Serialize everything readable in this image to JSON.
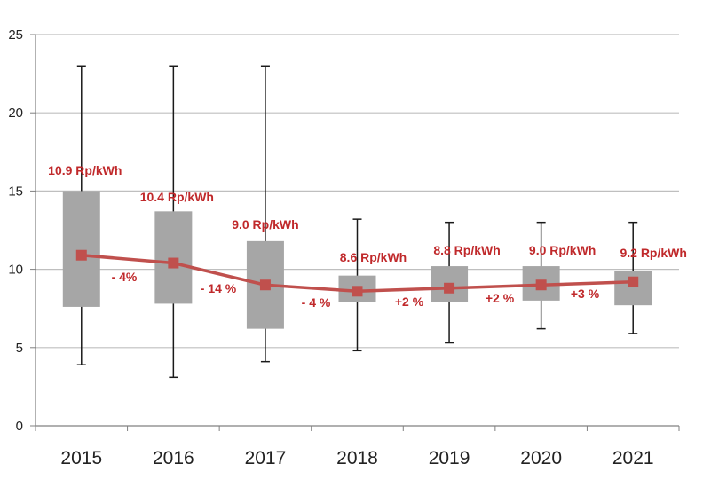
{
  "chart_data": {
    "type": "box",
    "categories": [
      "2015",
      "2016",
      "2017",
      "2018",
      "2019",
      "2020",
      "2021"
    ],
    "ylim": [
      0,
      25
    ],
    "yticks": [
      "0",
      "5",
      "10",
      "15",
      "20",
      "25"
    ],
    "grid": true,
    "boxes": [
      {
        "min": 3.9,
        "q1": 7.6,
        "q3": 15.0,
        "max": 23.0
      },
      {
        "min": 3.1,
        "q1": 7.8,
        "q3": 13.7,
        "max": 23.0
      },
      {
        "min": 4.1,
        "q1": 6.2,
        "q3": 11.8,
        "max": 23.0
      },
      {
        "min": 4.8,
        "q1": 7.9,
        "q3": 9.6,
        "max": 13.2
      },
      {
        "min": 5.3,
        "q1": 7.9,
        "q3": 10.2,
        "max": 13.0
      },
      {
        "min": 6.2,
        "q1": 8.0,
        "q3": 10.2,
        "max": 13.0
      },
      {
        "min": 5.9,
        "q1": 7.7,
        "q3": 9.9,
        "max": 13.0
      }
    ],
    "series": [
      {
        "values": [
          10.9,
          10.4,
          9.0,
          8.6,
          8.8,
          9.0,
          9.2
        ]
      }
    ],
    "value_labels": [
      "10.9 Rp/kWh",
      "10.4 Rp/kWh",
      "9.0 Rp/kWh",
      "8.6 Rp/kWh",
      "8.8 Rp/kWh",
      "9.0 Rp/kWh",
      "9.2 Rp/kWh"
    ],
    "change_labels": [
      "- 4%",
      "- 14 %",
      "- 4 %",
      "+2 %",
      "+2 %",
      "+3 %"
    ],
    "colors": {
      "box": "#a6a6a6",
      "line": "#c0504d",
      "label": "#c0292b",
      "grid": "#bfbfbf",
      "axis": "#808080"
    }
  }
}
